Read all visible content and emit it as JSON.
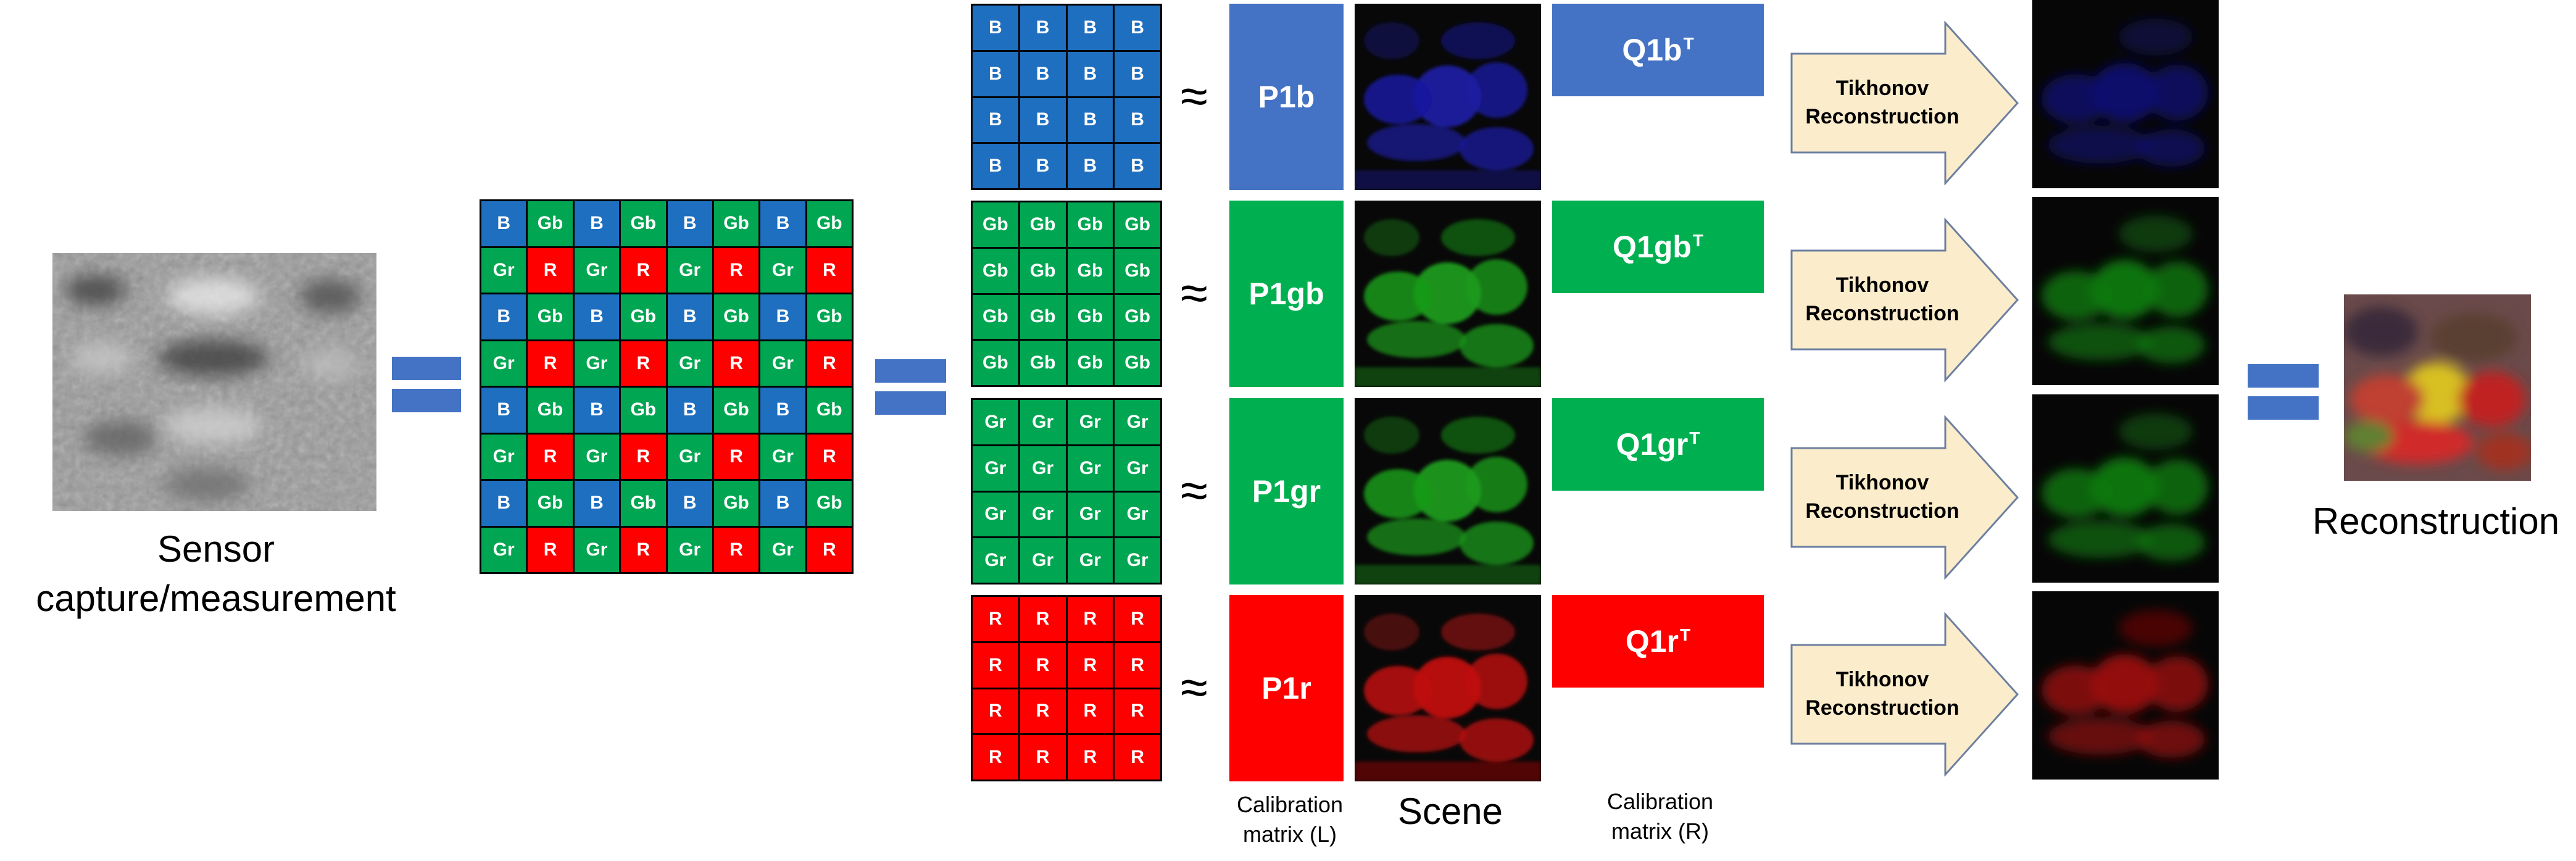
{
  "labels": {
    "sensor": "Sensor\ncapture/measurement",
    "reconstruction": "Reconstruction",
    "scene": "Scene",
    "calib_left": "Calibration\nmatrix (L)",
    "calib_right": "Calibration\nmatrix (R)"
  },
  "bayer": {
    "rows": [
      [
        "B",
        "Gb",
        "B",
        "Gb",
        "B",
        "Gb",
        "B",
        "Gb"
      ],
      [
        "Gr",
        "R",
        "Gr",
        "R",
        "Gr",
        "R",
        "Gr",
        "R"
      ],
      [
        "B",
        "Gb",
        "B",
        "Gb",
        "B",
        "Gb",
        "B",
        "Gb"
      ],
      [
        "Gr",
        "R",
        "Gr",
        "R",
        "Gr",
        "R",
        "Gr",
        "R"
      ],
      [
        "B",
        "Gb",
        "B",
        "Gb",
        "B",
        "Gb",
        "B",
        "Gb"
      ],
      [
        "Gr",
        "R",
        "Gr",
        "R",
        "Gr",
        "R",
        "Gr",
        "R"
      ],
      [
        "B",
        "Gb",
        "B",
        "Gb",
        "B",
        "Gb",
        "B",
        "Gb"
      ],
      [
        "Gr",
        "R",
        "Gr",
        "R",
        "Gr",
        "R",
        "Gr",
        "R"
      ]
    ]
  },
  "channels": [
    {
      "id": "b",
      "cell": "B",
      "color": "#1f6fc0",
      "p_label": "P1b",
      "p_color": "#4472c4",
      "q_label": "Q1b",
      "q_color": "#4472c4",
      "scene_color": "#1a1aa0",
      "recon_color": "#101070",
      "approx": "≈",
      "tikhonov": "Tikhonov\nReconstruction",
      "transpose": "T"
    },
    {
      "id": "gb",
      "cell": "Gb",
      "color": "#00a651",
      "p_label": "P1gb",
      "p_color": "#00b050",
      "q_label": "Q1gb",
      "q_color": "#00b050",
      "scene_color": "#1a9a1a",
      "recon_color": "#127a12",
      "approx": "≈",
      "tikhonov": "Tikhonov\nReconstruction",
      "transpose": "T"
    },
    {
      "id": "gr",
      "cell": "Gr",
      "color": "#00a651",
      "p_label": "P1gr",
      "p_color": "#00b050",
      "q_label": "Q1gr",
      "q_color": "#00b050",
      "scene_color": "#1a9a1a",
      "recon_color": "#127a12",
      "approx": "≈",
      "tikhonov": "Tikhonov\nReconstruction",
      "transpose": "T"
    },
    {
      "id": "r",
      "cell": "R",
      "color": "#ff0000",
      "p_label": "P1r",
      "p_color": "#ff0000",
      "q_label": "Q1r",
      "q_color": "#ff0000",
      "scene_color": "#c01010",
      "recon_color": "#9a0a0a",
      "approx": "≈",
      "tikhonov": "Tikhonov\nReconstruction",
      "transpose": "T"
    }
  ],
  "colors": {
    "equals": "#4472c4",
    "arrow_fill": "#fbeccb",
    "arrow_stroke": "#6d7fa0"
  }
}
